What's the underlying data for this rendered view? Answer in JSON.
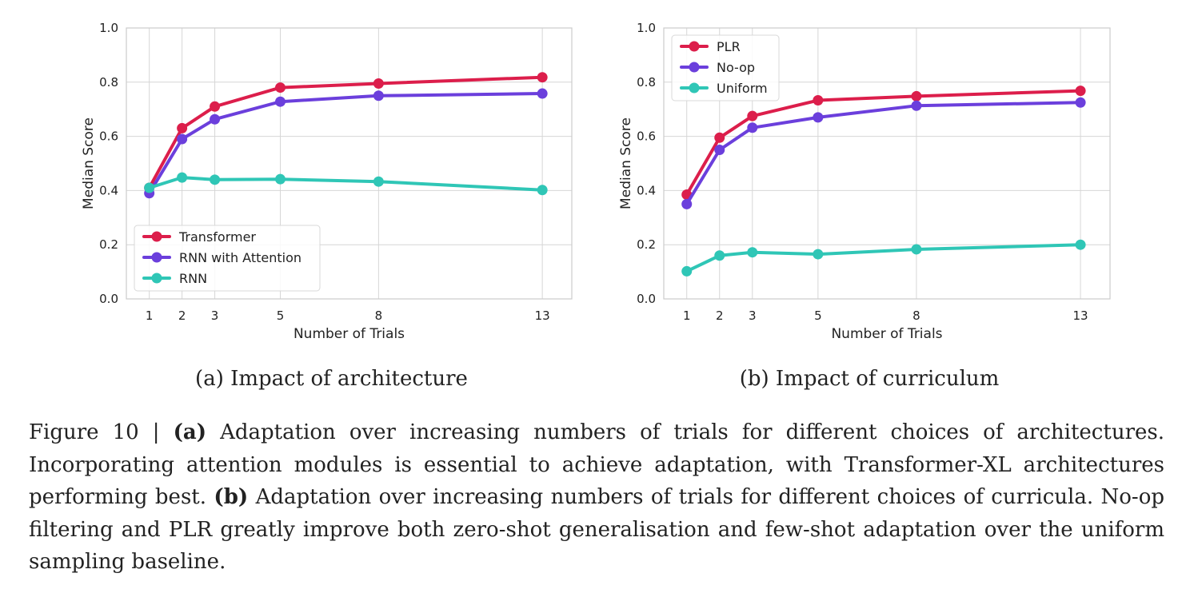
{
  "chart_data": [
    {
      "type": "line",
      "subcaption": "(a) Impact of architecture",
      "xlabel": "Number of Trials",
      "ylabel": "Median Score",
      "x": [
        1,
        2,
        3,
        5,
        8,
        13
      ],
      "xlim": [
        0.3,
        13.9
      ],
      "ylim": [
        0,
        1
      ],
      "yticks": [
        "0.0",
        "0.2",
        "0.4",
        "0.6",
        "0.8",
        "1.0"
      ],
      "xticks": [
        "1",
        "2",
        "3",
        "5",
        "8",
        "13"
      ],
      "grid": true,
      "legend_position": "lower-left",
      "series": [
        {
          "name": "Transformer",
          "color": "#dc1e4b",
          "values": [
            0.41,
            0.63,
            0.71,
            0.78,
            0.795,
            0.818
          ]
        },
        {
          "name": "RNN with Attention",
          "color": "#6b3fdc",
          "values": [
            0.39,
            0.59,
            0.663,
            0.728,
            0.75,
            0.758
          ]
        },
        {
          "name": "RNN",
          "color": "#2fc6b6",
          "values": [
            0.41,
            0.448,
            0.44,
            0.442,
            0.433,
            0.402
          ]
        }
      ]
    },
    {
      "type": "line",
      "subcaption": "(b) Impact of curriculum",
      "xlabel": "Number of Trials",
      "ylabel": "Median Score",
      "x": [
        1,
        2,
        3,
        5,
        8,
        13
      ],
      "xlim": [
        0.3,
        13.9
      ],
      "ylim": [
        0,
        1
      ],
      "yticks": [
        "0.0",
        "0.2",
        "0.4",
        "0.6",
        "0.8",
        "1.0"
      ],
      "xticks": [
        "1",
        "2",
        "3",
        "5",
        "8",
        "13"
      ],
      "grid": true,
      "legend_position": "top-left",
      "series": [
        {
          "name": "PLR",
          "color": "#dc1e4b",
          "values": [
            0.385,
            0.595,
            0.675,
            0.733,
            0.748,
            0.768
          ]
        },
        {
          "name": "No-op",
          "color": "#6b3fdc",
          "values": [
            0.35,
            0.55,
            0.632,
            0.67,
            0.713,
            0.725
          ]
        },
        {
          "name": "Uniform",
          "color": "#2fc6b6",
          "values": [
            0.102,
            0.16,
            0.172,
            0.165,
            0.183,
            0.2
          ]
        }
      ]
    }
  ],
  "caption": {
    "prefix": "Figure 10 | ",
    "a_marker": "(a)",
    "a_text": " Adaptation over increasing numbers of trials for different choices of architectures. Incorporating attention modules is essential to achieve adaptation, with Transformer-XL architectures performing best. ",
    "b_marker": "(b)",
    "b_text": " Adaptation over increasing numbers of trials for different choices of curricula. No-op filtering and PLR greatly improve both zero-shot generalisation and few-shot adaptation over the uniform sampling baseline."
  }
}
